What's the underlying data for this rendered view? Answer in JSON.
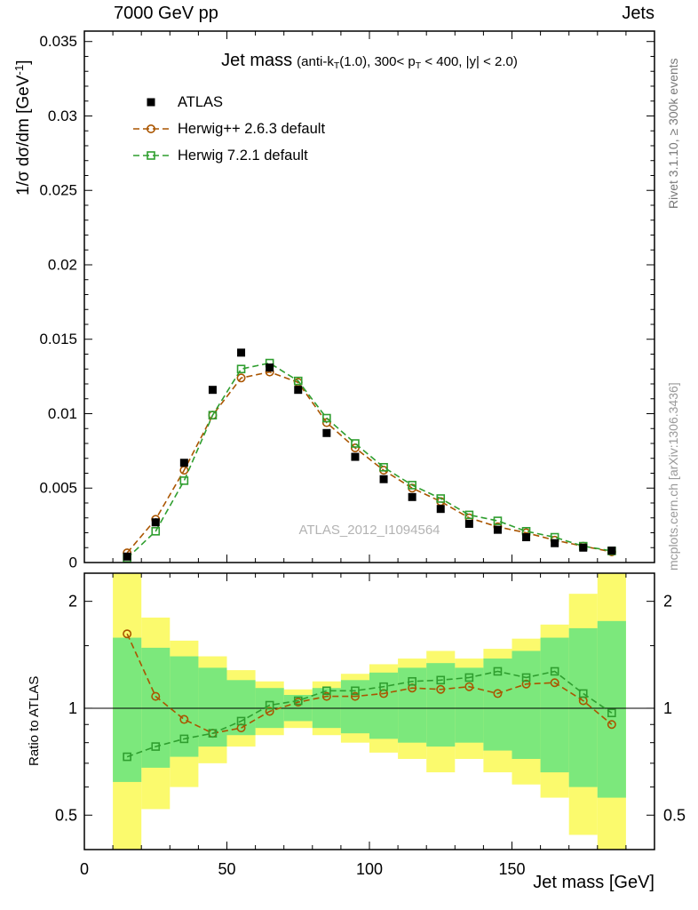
{
  "header": {
    "left": "7000 GeV pp",
    "right": "Jets"
  },
  "watermark": "ATLAS_2012_I1094564",
  "side_notes": {
    "rivet": "Rivet 3.1.10, ≥ 300k events",
    "mcplots": "mcplots.cern.ch [arXiv:1306.3436]"
  },
  "colors": {
    "atlas": "#000000",
    "herwigpp": "#aa5500",
    "herwig7": "#2f9e2f",
    "band_outer": "#fbfa6d",
    "band_inner": "#7ce87c"
  },
  "chart_data": [
    {
      "type": "line",
      "title": "Jet mass",
      "subtitle_parts": [
        {
          "text": "(anti-k"
        },
        {
          "text": "T",
          "sub": true
        },
        {
          "text": "(1.0), 300< p"
        },
        {
          "text": "T",
          "sub": true
        },
        {
          "text": " < 400, |y| < 2.0)"
        }
      ],
      "xlabel": "Jet mass [GeV]",
      "ylabel_parts": [
        {
          "text": "1/σ dσ/dm [GeV"
        },
        {
          "text": "-1",
          "sup": true
        },
        {
          "text": "]"
        }
      ],
      "xlim": [
        0,
        200
      ],
      "ylim": [
        0,
        0.0357
      ],
      "bin_width": 10,
      "xticks": {
        "major_step": 50,
        "minor_step": 10,
        "labels": [
          0,
          50,
          100,
          150
        ]
      },
      "yticks": {
        "major_step": 0.005,
        "minor_step": 0.001
      },
      "x": [
        15,
        25,
        35,
        45,
        55,
        65,
        75,
        85,
        95,
        105,
        115,
        125,
        135,
        145,
        155,
        165,
        175,
        185
      ],
      "series": [
        {
          "name": "ATLAS",
          "marker": "square-filled",
          "color": "#000000",
          "line": false,
          "dash": false,
          "values": [
            0.0004,
            0.0027,
            0.0067,
            0.0116,
            0.0141,
            0.0131,
            0.0116,
            0.0087,
            0.0071,
            0.0056,
            0.0044,
            0.0036,
            0.0026,
            0.0022,
            0.0017,
            0.0013,
            0.001,
            0.0008
          ]
        },
        {
          "name": "Herwig++ 2.6.3 default",
          "marker": "circle-open",
          "color": "#aa5500",
          "line": true,
          "dash": true,
          "values": [
            0.00065,
            0.0029,
            0.0062,
            0.0099,
            0.0124,
            0.0128,
            0.0121,
            0.0094,
            0.0077,
            0.0062,
            0.005,
            0.0041,
            0.003,
            0.0024,
            0.002,
            0.0015,
            0.0011,
            0.00072
          ]
        },
        {
          "name": "Herwig 7.2.1 default",
          "marker": "square-open",
          "color": "#2f9e2f",
          "line": true,
          "dash": true,
          "values": [
            0.00029,
            0.0021,
            0.0055,
            0.0099,
            0.013,
            0.0134,
            0.0122,
            0.0097,
            0.008,
            0.0064,
            0.0052,
            0.0043,
            0.0032,
            0.0028,
            0.0021,
            0.0017,
            0.0011,
            0.00078
          ]
        }
      ]
    },
    {
      "type": "ratio",
      "ylabel": "Ratio to ATLAS",
      "yscale": "log",
      "ylim": [
        0.4,
        2.4
      ],
      "yticks_major": [
        0.5,
        1,
        2
      ],
      "yticks_minor": [
        0.6,
        0.7,
        0.8,
        0.9,
        1.5
      ],
      "reference": 1,
      "bands": [
        {
          "name": "outer",
          "color": "#fbfa6d",
          "lo": [
            0.3,
            0.52,
            0.6,
            0.7,
            0.78,
            0.84,
            0.88,
            0.84,
            0.8,
            0.75,
            0.72,
            0.66,
            0.72,
            0.66,
            0.61,
            0.56,
            0.44,
            0.34
          ],
          "hi": [
            2.5,
            1.8,
            1.55,
            1.4,
            1.28,
            1.19,
            1.13,
            1.19,
            1.25,
            1.33,
            1.38,
            1.45,
            1.38,
            1.47,
            1.57,
            1.72,
            2.1,
            2.5
          ]
        },
        {
          "name": "inner",
          "color": "#7ce87c",
          "lo": [
            0.62,
            0.68,
            0.73,
            0.78,
            0.84,
            0.88,
            0.92,
            0.88,
            0.85,
            0.82,
            0.8,
            0.78,
            0.8,
            0.76,
            0.72,
            0.66,
            0.6,
            0.56
          ],
          "hi": [
            1.58,
            1.48,
            1.4,
            1.3,
            1.2,
            1.14,
            1.09,
            1.14,
            1.2,
            1.26,
            1.3,
            1.34,
            1.3,
            1.38,
            1.45,
            1.58,
            1.68,
            1.76
          ]
        }
      ],
      "series": [
        {
          "name": "Herwig++ 2.6.3 default",
          "marker": "circle-open",
          "color": "#aa5500",
          "line": true,
          "dash": true,
          "values": [
            1.62,
            1.08,
            0.93,
            0.85,
            0.88,
            0.98,
            1.04,
            1.08,
            1.08,
            1.1,
            1.14,
            1.13,
            1.15,
            1.1,
            1.17,
            1.18,
            1.05,
            0.9
          ]
        },
        {
          "name": "Herwig 7.2.1 default",
          "marker": "square-open",
          "color": "#2f9e2f",
          "line": true,
          "dash": true,
          "values": [
            0.73,
            0.78,
            0.82,
            0.85,
            0.92,
            1.02,
            1.05,
            1.12,
            1.12,
            1.15,
            1.19,
            1.2,
            1.22,
            1.27,
            1.22,
            1.27,
            1.1,
            0.97
          ]
        }
      ]
    }
  ]
}
